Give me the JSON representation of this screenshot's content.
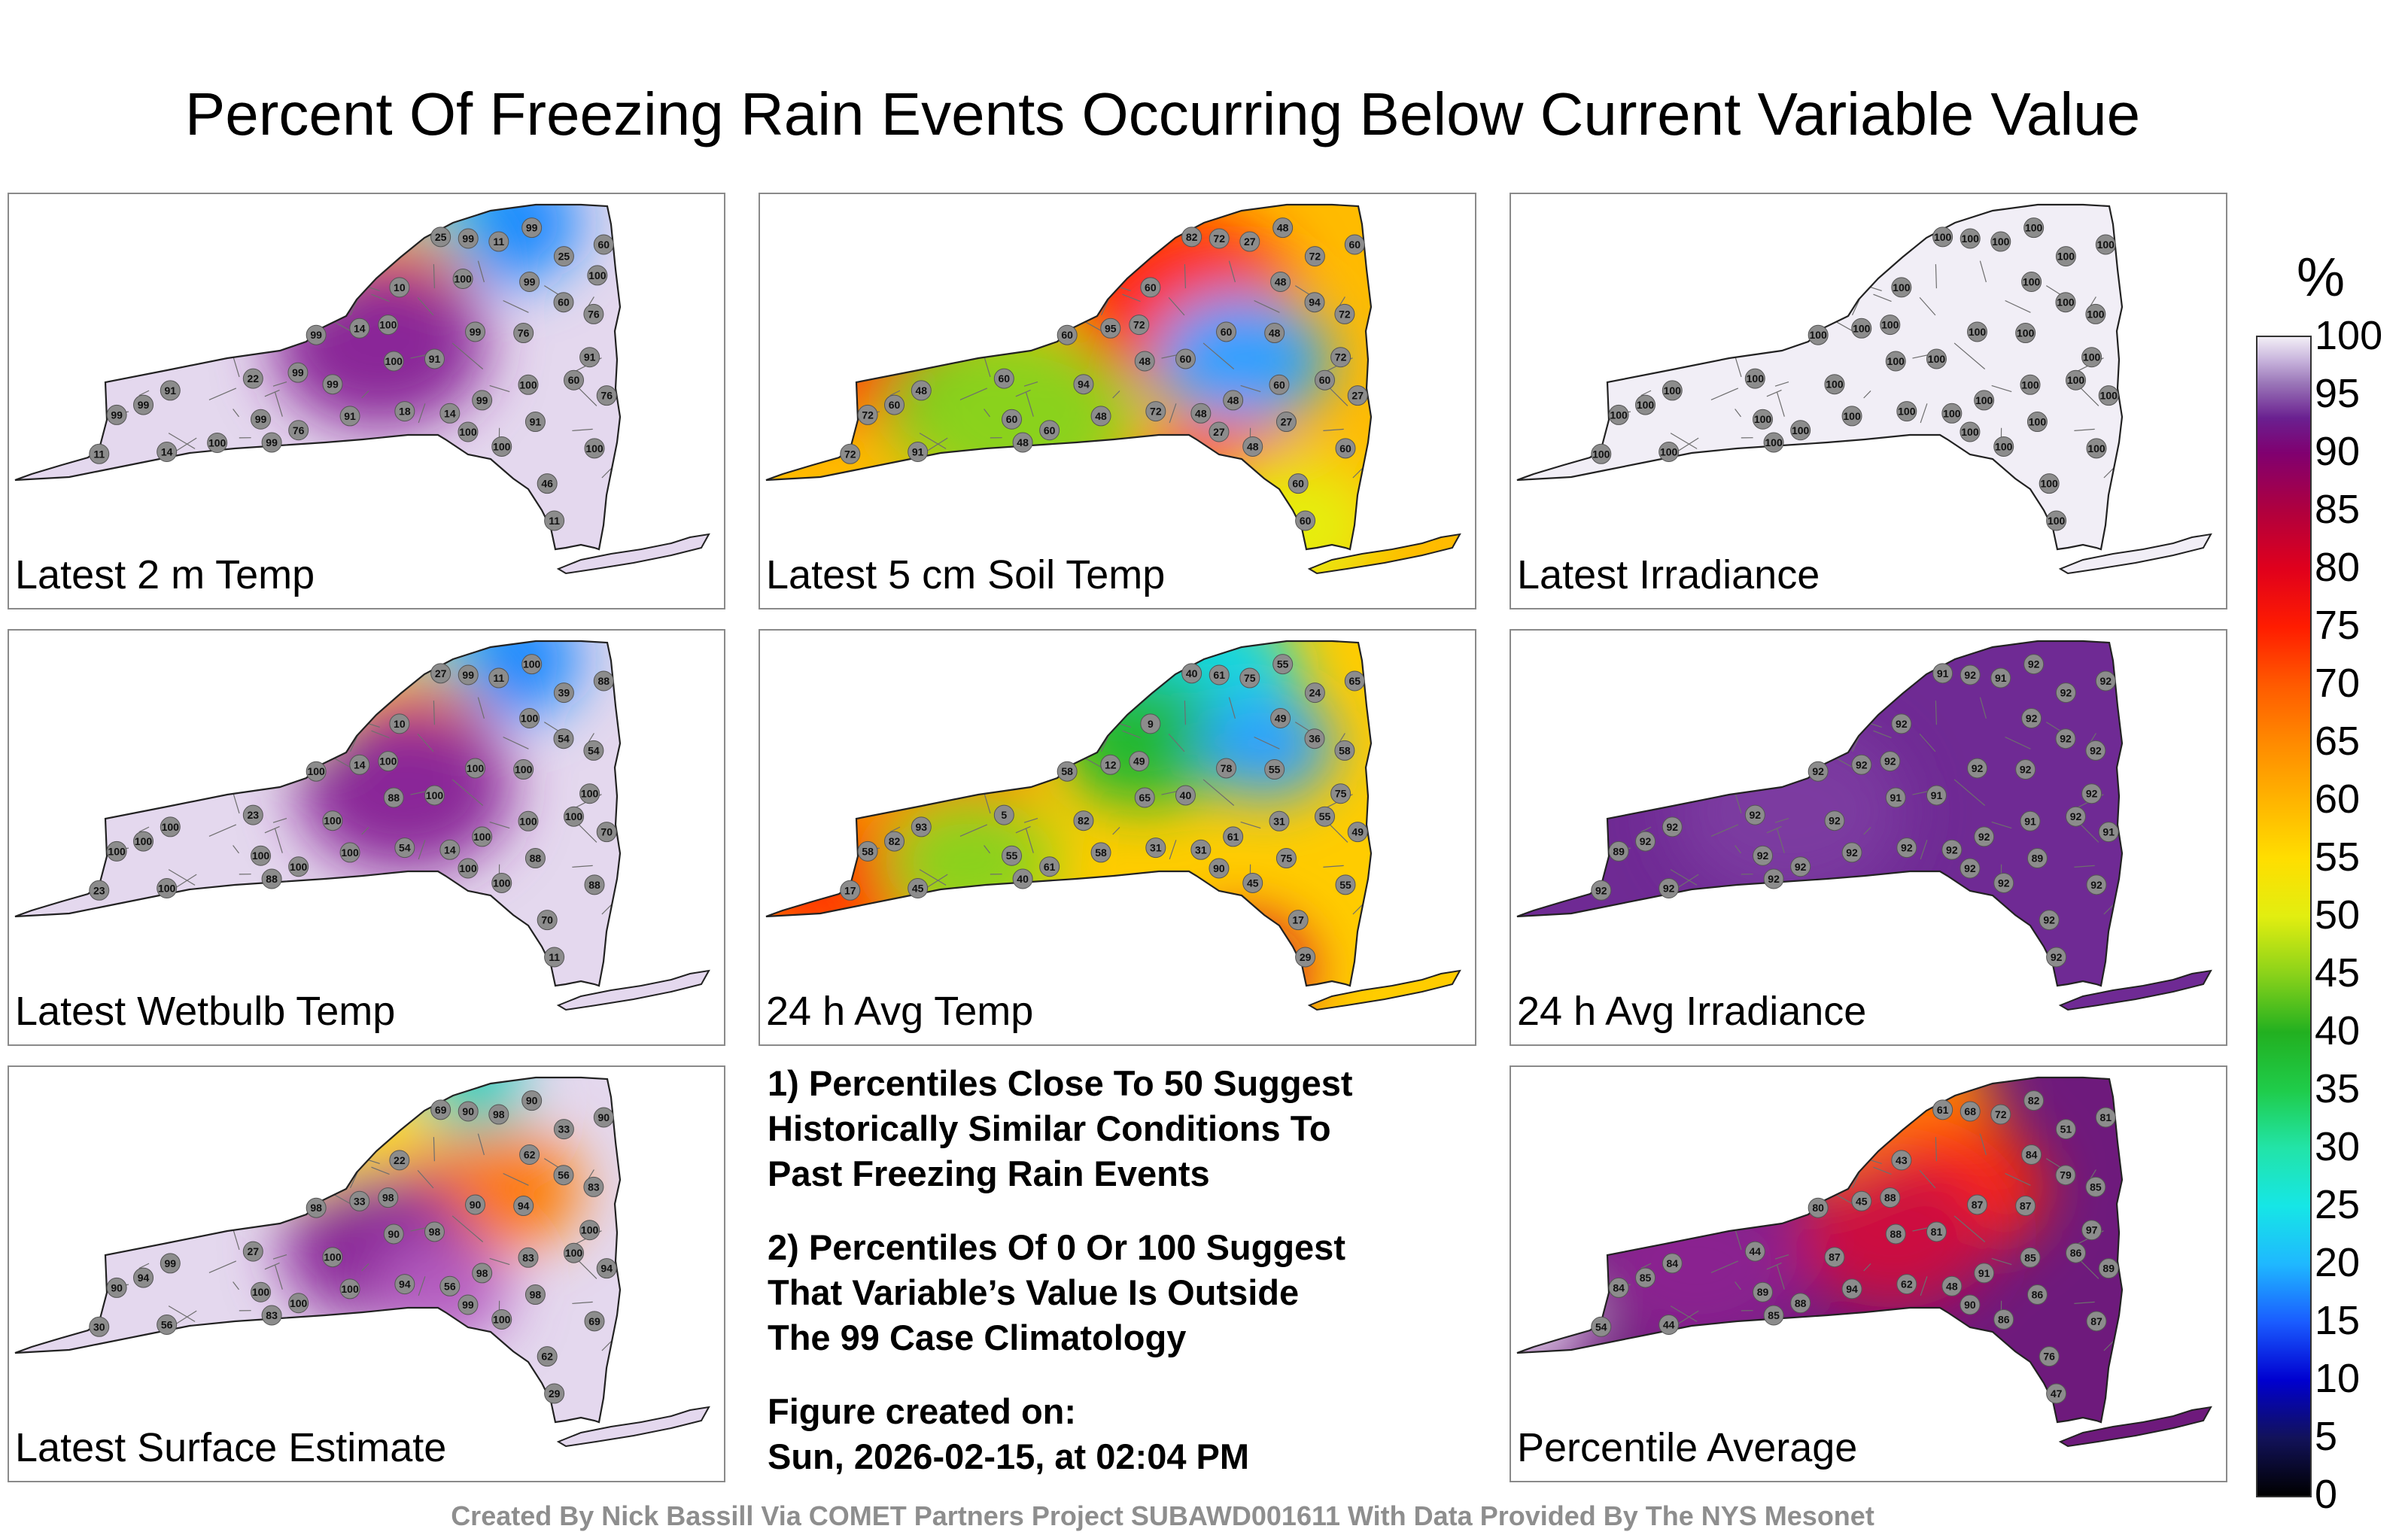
{
  "title": "Percent Of Freezing Rain Events Occurring Below Current Variable Value",
  "colorbar": {
    "unit": "%",
    "ticks": [
      "100",
      "95",
      "90",
      "85",
      "80",
      "75",
      "70",
      "65",
      "60",
      "55",
      "50",
      "45",
      "40",
      "35",
      "30",
      "25",
      "20",
      "15",
      "10",
      "5",
      "0"
    ]
  },
  "panels": [
    {
      "label": "Latest 2 m Temp",
      "base": "#e4d8ee",
      "blobs": [
        [
          "#1488ff",
          0.8,
          0.08,
          0.4
        ],
        [
          "#22d8c8",
          0.6,
          0.12,
          0.5
        ],
        [
          "#fffa00",
          0.58,
          0.22,
          0.4
        ],
        [
          "#ff6a00",
          0.62,
          0.26,
          0.4
        ],
        [
          "#d61030",
          0.66,
          0.4,
          0.35
        ],
        [
          "#8a2898",
          0.6,
          0.42,
          0.55
        ]
      ],
      "stations": [
        "11",
        "25",
        "22",
        "10",
        "11",
        "14",
        "14",
        "18",
        "60",
        "25",
        "14",
        "46",
        "76",
        "99",
        "60",
        "11",
        "99",
        "100",
        "99",
        "76",
        "99",
        "100",
        "91",
        "76",
        "76",
        "60",
        "100",
        "99",
        "100",
        "99",
        "91",
        "99",
        "99",
        "100",
        "91",
        "99",
        "99",
        "91",
        "91",
        "99",
        "100",
        "100",
        "99",
        "100",
        "100"
      ]
    },
    {
      "label": "Latest 5 cm Soil Temp",
      "base": "#ffbb00",
      "blobs": [
        [
          "#ff4a00",
          0.15,
          0.4,
          0.55
        ],
        [
          "#ff2a00",
          0.68,
          0.3,
          0.6
        ],
        [
          "#22b830",
          0.36,
          0.58,
          0.5
        ],
        [
          "#8ad21a",
          0.42,
          0.62,
          0.6
        ],
        [
          "#2ea0ff",
          0.78,
          0.46,
          0.45
        ],
        [
          "#ff5a00",
          0.75,
          0.8,
          0.45
        ],
        [
          "#e6ee10",
          0.86,
          0.92,
          0.45
        ]
      ],
      "stations": [
        "60",
        "72",
        "60",
        "60",
        "72",
        "95",
        "48",
        "72",
        "94",
        "82",
        "91",
        "60",
        "72",
        "48",
        "60",
        "27",
        "72",
        "60",
        "48",
        "27",
        "60",
        "48",
        "27",
        "48",
        "60",
        "60",
        "72",
        "72",
        "60",
        "48",
        "60",
        "60",
        "60",
        "27",
        "48",
        "94",
        "48",
        "48",
        "72",
        "60",
        "48"
      ]
    },
    {
      "label": "Latest Irradiance",
      "base": "#f1eef6",
      "blobs": [],
      "stations": [
        "100",
        "100",
        "100",
        "100",
        "100",
        "100",
        "100",
        "100",
        "100",
        "100",
        "100",
        "100",
        "100",
        "100",
        "100",
        "100",
        "100",
        "100",
        "100",
        "100",
        "100",
        "100",
        "100",
        "100",
        "100",
        "100",
        "100",
        "100",
        "100",
        "100",
        "100",
        "100",
        "100",
        "100",
        "100",
        "100",
        "100",
        "100",
        "100",
        "100",
        "100"
      ]
    },
    {
      "label": "Latest Wetbulb Temp",
      "base": "#e4d8ee",
      "blobs": [
        [
          "#1488ff",
          0.8,
          0.08,
          0.4
        ],
        [
          "#22d8c8",
          0.6,
          0.12,
          0.5
        ],
        [
          "#fffa00",
          0.58,
          0.22,
          0.4
        ],
        [
          "#ff6a00",
          0.65,
          0.28,
          0.4
        ],
        [
          "#d61030",
          0.7,
          0.4,
          0.35
        ],
        [
          "#8a2898",
          0.64,
          0.44,
          0.55
        ]
      ],
      "stations": [
        "11",
        "39",
        "23",
        "10",
        "23",
        "14",
        "14",
        "54",
        "54",
        "27",
        "100",
        "70",
        "54",
        "100",
        "88",
        "11",
        "99",
        "88",
        "88",
        "70",
        "100",
        "88",
        "88",
        "100",
        "100",
        "100",
        "100",
        "100",
        "100",
        "100",
        "100",
        "100",
        "100",
        "100",
        "100",
        "100",
        "100",
        "100",
        "100",
        "100",
        "100"
      ]
    },
    {
      "label": "24 h Avg Temp",
      "base": "#ffcc00",
      "blobs": [
        [
          "#16d8e0",
          0.7,
          0.12,
          0.55
        ],
        [
          "#22b830",
          0.62,
          0.3,
          0.45
        ],
        [
          "#ff3a00",
          0.12,
          0.7,
          0.5
        ],
        [
          "#ff7a00",
          0.3,
          0.45,
          0.45
        ],
        [
          "#8ad21a",
          0.34,
          0.64,
          0.45
        ],
        [
          "#2ea0ff",
          0.82,
          0.32,
          0.35
        ],
        [
          "#d61030",
          0.78,
          0.94,
          0.35
        ]
      ],
      "stations": [
        "29",
        "24",
        "5",
        "9",
        "17",
        "12",
        "31",
        "31",
        "36",
        "40",
        "45",
        "17",
        "58",
        "49",
        "65",
        "75",
        "61",
        "55",
        "40",
        "49",
        "58",
        "65",
        "75",
        "55",
        "61",
        "55",
        "49",
        "58",
        "31",
        "55",
        "40",
        "82",
        "78",
        "90",
        "93",
        "82",
        "61",
        "58",
        "75",
        "55",
        "45"
      ]
    },
    {
      "label": "24 h Avg Irradiance",
      "base": "#6f2a94",
      "blobs": [
        [
          "#7c3aa0",
          0.45,
          0.5,
          0.6
        ]
      ],
      "stations": [
        "92",
        "92",
        "92",
        "92",
        "92",
        "92",
        "92",
        "92",
        "92",
        "91",
        "92",
        "92",
        "92",
        "92",
        "92",
        "91",
        "92",
        "92",
        "92",
        "91",
        "92",
        "91",
        "89",
        "92",
        "92",
        "92",
        "92",
        "89",
        "91",
        "92",
        "91",
        "92",
        "92",
        "92",
        "92",
        "92",
        "92",
        "92",
        "92",
        "92",
        "92"
      ]
    },
    {
      "label": "Latest Surface Estimate",
      "base": "#e4d8ee",
      "blobs": [
        [
          "#22d0c0",
          0.66,
          0.08,
          0.55
        ],
        [
          "#ffde00",
          0.56,
          0.2,
          0.45
        ],
        [
          "#ff2a00",
          0.72,
          0.36,
          0.35
        ],
        [
          "#ff7a00",
          0.8,
          0.34,
          0.4
        ],
        [
          "#8a2898",
          0.6,
          0.5,
          0.5
        ],
        [
          "#b45cc0",
          0.7,
          0.62,
          0.35
        ]
      ],
      "stations": [
        "29",
        "33",
        "27",
        "22",
        "30",
        "33",
        "56",
        "94",
        "56",
        "69",
        "56",
        "62",
        "83",
        "62",
        "90",
        "98",
        "90",
        "69",
        "83",
        "94",
        "98",
        "90",
        "98",
        "94",
        "100",
        "100",
        "98",
        "90",
        "83",
        "90",
        "98",
        "94",
        "90",
        "99",
        "99",
        "100",
        "98",
        "100",
        "100",
        "100",
        "100"
      ]
    },
    {
      "label": "Percentile Average",
      "base": "#6e1a7c",
      "blobs": [
        [
          "#ffcc00",
          0.62,
          0.1,
          0.5
        ],
        [
          "#ff7a00",
          0.62,
          0.18,
          0.55
        ],
        [
          "#ff2a00",
          0.72,
          0.34,
          0.45
        ],
        [
          "#cc1040",
          0.62,
          0.46,
          0.5
        ],
        [
          "#8a2090",
          0.3,
          0.55,
          0.55
        ],
        [
          "#e6d8ee",
          0.03,
          0.72,
          0.3
        ]
      ],
      "stations": [
        "47",
        "51",
        "44",
        "43",
        "54",
        "45",
        "48",
        "62",
        "79",
        "61",
        "44",
        "76",
        "85",
        "84",
        "81",
        "72",
        "68",
        "87",
        "85",
        "89",
        "80",
        "88",
        "86",
        "87",
        "88",
        "86",
        "88",
        "84",
        "85",
        "82",
        "81",
        "85",
        "87",
        "90",
        "84",
        "87",
        "91",
        "94",
        "97",
        "89",
        "86"
      ]
    }
  ],
  "notes": {
    "note1": [
      "1) Percentiles Close To 50 Suggest",
      "Historically Similar Conditions To",
      "Past Freezing Rain Events"
    ],
    "note2": [
      "2) Percentiles Of 0 Or 100 Suggest",
      "That Variable’s Value Is Outside",
      "The 99 Case Climatology"
    ],
    "created": [
      "Figure created on:",
      "Sun, 2026-02-15, at 02:04 PM"
    ]
  },
  "credit": "Created By Nick Bassill Via COMET Partners Project SUBAWD001611 With Data Provided By The NYS Mesonet",
  "colors": {
    "map_outline": "#222222",
    "county_lines": "#6e6e6e",
    "station_fill": "#8c8c8c"
  }
}
